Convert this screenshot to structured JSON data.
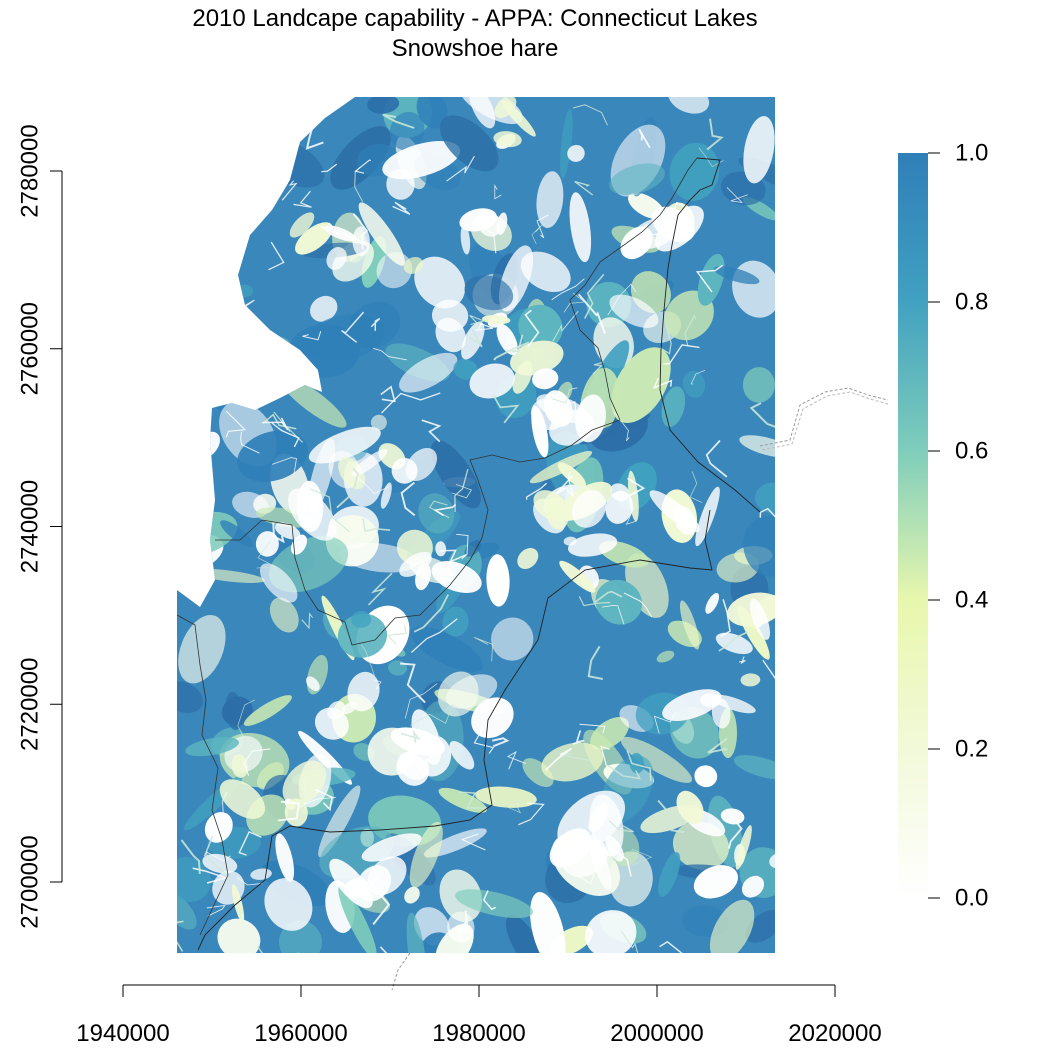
{
  "title": "2010 Landcape capability - APPA: Connecticut Lakes",
  "subtitle": "Snowshoe hare",
  "chart_data": {
    "type": "heatmap",
    "title": "2010 Landcape capability - APPA: Connecticut Lakes",
    "subtitle": "Snowshoe hare",
    "xlabel": "",
    "ylabel": "",
    "xlim": [
      1940000,
      2020000
    ],
    "ylim": [
      2700000,
      2780000
    ],
    "x_ticks": [
      1940000,
      1960000,
      1980000,
      2000000,
      2020000
    ],
    "y_ticks": [
      2700000,
      2720000,
      2740000,
      2760000,
      2780000
    ],
    "x_tick_labels": [
      "1940000",
      "1960000",
      "1980000",
      "2000000",
      "2020000"
    ],
    "y_tick_labels": [
      "2700000",
      "2720000",
      "2740000",
      "2760000",
      "2780000"
    ],
    "value_range": [
      0.0,
      1.0
    ],
    "colorbar": {
      "ticks": [
        0.0,
        0.2,
        0.4,
        0.6,
        0.8,
        1.0
      ],
      "labels": [
        "0.0",
        "0.2",
        "0.4",
        "0.6",
        "0.8",
        "1.0"
      ],
      "colors": [
        "#ffffff",
        "#f2f9d9",
        "#e8f7ad",
        "#7fcdbb",
        "#41a1c0",
        "#2f7fb8"
      ]
    },
    "legend_position": "right",
    "grid": false
  }
}
